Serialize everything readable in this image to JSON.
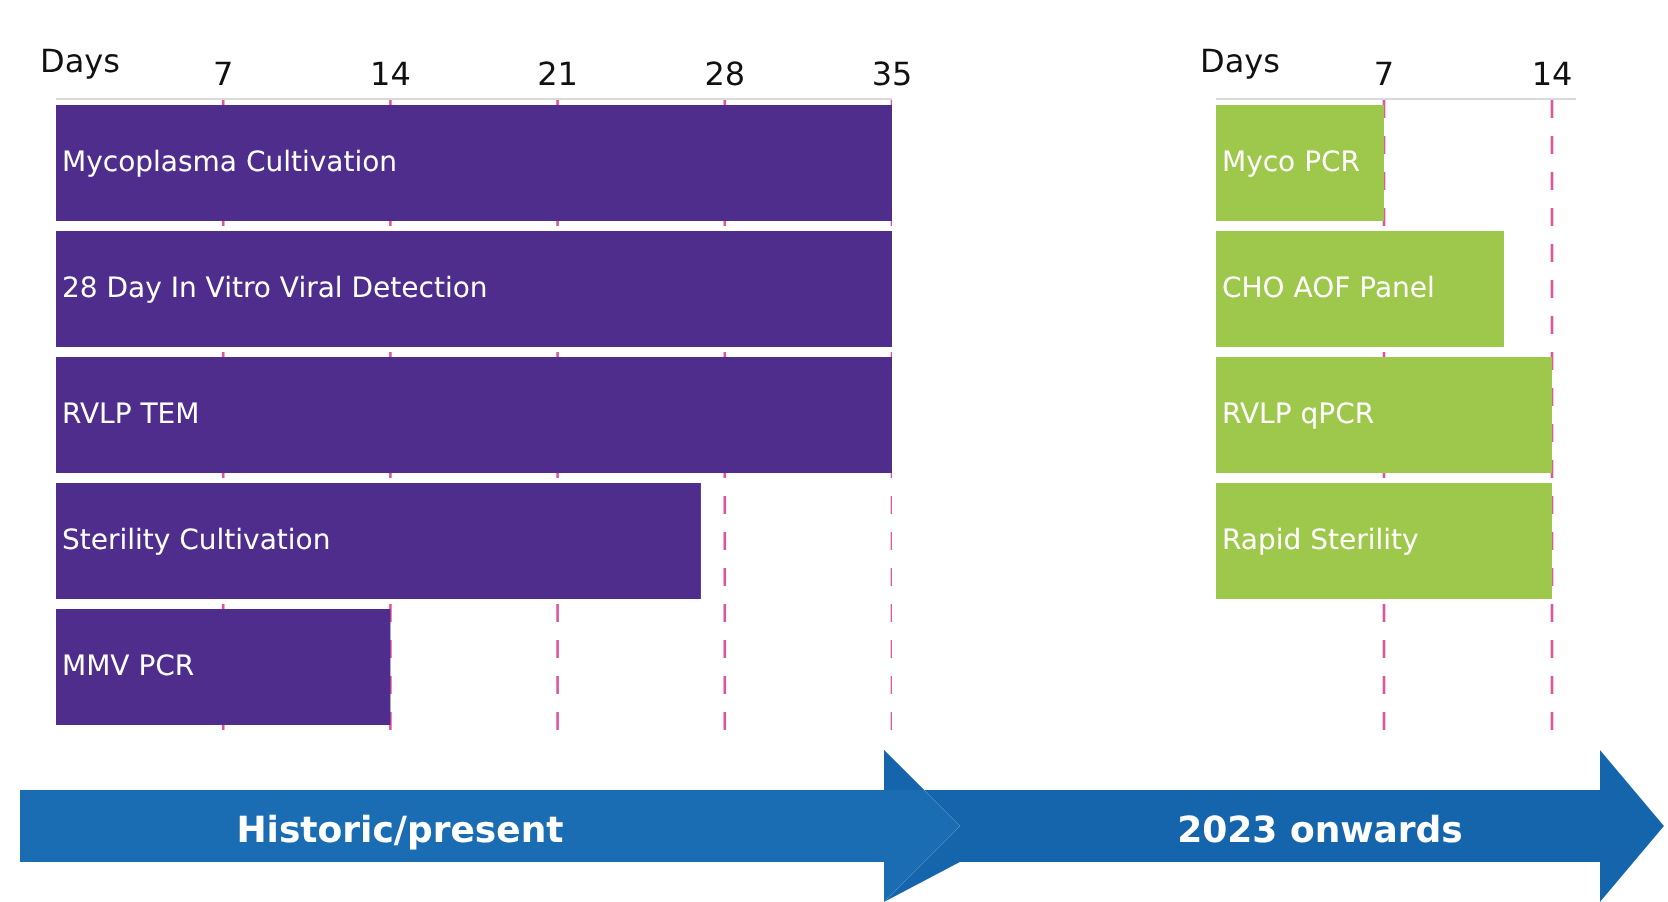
{
  "chart_data": [
    {
      "type": "bar",
      "orientation": "horizontal",
      "xlabel": "Days",
      "categories": [
        "Mycoplasma Cultivation",
        "28 Day In Vitro Viral Detection",
        "RVLP TEM",
        "Sterility Cultivation",
        "MMV PCR"
      ],
      "values": [
        35,
        35,
        35,
        27,
        14
      ],
      "color": "#4f2d8c",
      "xlim": [
        0,
        35
      ],
      "xticks": [
        7,
        14,
        21,
        28,
        35
      ],
      "grid": "x",
      "tick_labels": "x",
      "annotations": [
        "Historic/present"
      ]
    },
    {
      "type": "bar",
      "orientation": "horizontal",
      "xlabel": "Days",
      "categories": [
        "Myco PCR",
        "CHO AOF Panel",
        "RVLP qPCR",
        "Rapid Sterility"
      ],
      "values": [
        7,
        12,
        14,
        14
      ],
      "color": "#9dc84b",
      "xlim": [
        0,
        15
      ],
      "xticks": [
        7,
        14
      ],
      "grid": "x",
      "tick_labels": "x",
      "annotations": [
        "2023 onwards"
      ]
    }
  ]
}
